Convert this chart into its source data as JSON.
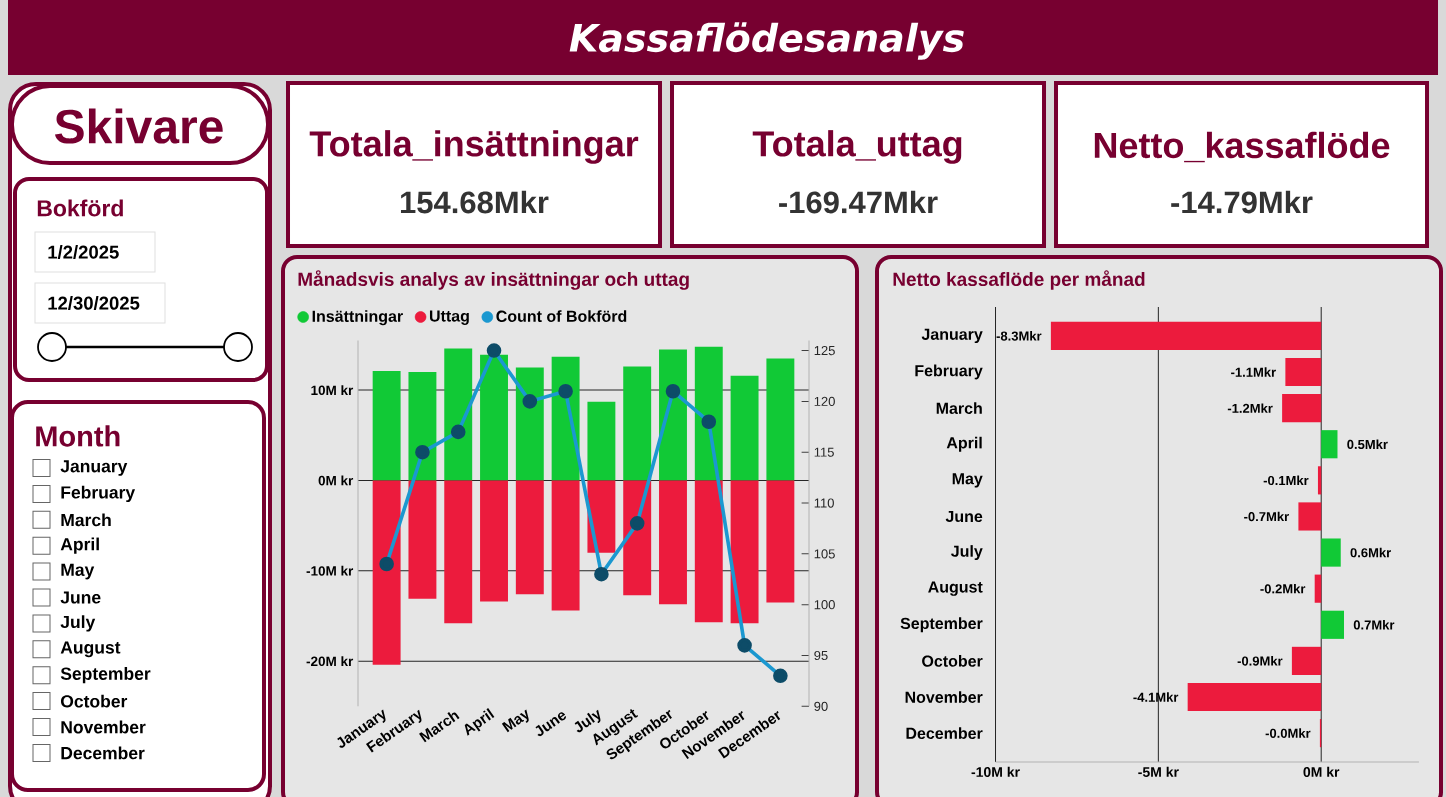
{
  "chart_data": [
    {
      "type": "other",
      "title": "Kassaflödesanalys"
    },
    {
      "type": "other",
      "title": "Skivare",
      "subtitle": "Bokförd",
      "annotations": [
        "1/2/2025",
        "12/30/2025"
      ]
    },
    {
      "type": "other",
      "title": "Month",
      "categories": [
        "January",
        "February",
        "March",
        "April",
        "May",
        "June",
        "July",
        "August",
        "September",
        "October",
        "November",
        "December"
      ]
    },
    {
      "type": "other",
      "annotations": [
        "Totala_insättningar",
        "154.68Mkr",
        "Totala_uttag",
        "-169.47Mkr",
        "Netto_kassaflöde",
        "-14.79Mkr"
      ]
    },
    {
      "type": "bar",
      "title": "Månadsvis analys av insättningar och uttag",
      "categories": [
        "January",
        "February",
        "March",
        "April",
        "May",
        "June",
        "July",
        "August",
        "September",
        "October",
        "November",
        "December"
      ],
      "stacked": true,
      "series": [
        {
          "name": "Insättningar",
          "color": "#11c936",
          "values": [
            12.1,
            12.0,
            14.6,
            13.9,
            12.5,
            13.7,
            8.7,
            12.6,
            14.5,
            14.8,
            11.6,
            13.5
          ]
        },
        {
          "name": "Uttag",
          "color": "#ec1b3d",
          "values": [
            -20.4,
            -13.1,
            -15.8,
            -13.4,
            -12.6,
            -14.4,
            -8.0,
            -12.7,
            -13.7,
            -15.7,
            -15.8,
            -13.5
          ]
        },
        {
          "name": "Count of Bokförd",
          "type": "line",
          "axis": "y2",
          "color": "#1b98d0",
          "values": [
            104,
            115,
            117,
            125,
            120,
            121,
            103,
            108,
            121,
            118,
            96,
            93
          ]
        }
      ],
      "marker": "circle",
      "ylim": [
        -25,
        15.5
      ],
      "yticks": [
        {
          "value": -20,
          "label": "-20M kr"
        },
        {
          "value": -10,
          "label": "-10M kr"
        },
        {
          "value": 0,
          "label": "0M kr"
        },
        {
          "value": 10,
          "label": "10M kr"
        }
      ],
      "y2lim": [
        90,
        126
      ],
      "y2ticks": [
        90,
        95,
        100,
        105,
        110,
        115,
        120,
        125
      ],
      "grid": "y",
      "legend": "top left"
    },
    {
      "type": "bar",
      "orientation": "horizontal",
      "title": "Netto kassaflöde per månad",
      "categories": [
        "January",
        "February",
        "March",
        "April",
        "May",
        "June",
        "July",
        "August",
        "September",
        "October",
        "November",
        "December"
      ],
      "values": [
        -8.3,
        -1.1,
        -1.2,
        0.5,
        -0.1,
        -0.7,
        0.6,
        -0.2,
        0.7,
        -0.9,
        -4.1,
        -0.04
      ],
      "colors": [
        "#ec1b3d",
        "#ec1b3d",
        "#ec1b3d",
        "#11c936",
        "#ec1b3d",
        "#ec1b3d",
        "#11c936",
        "#ec1b3d",
        "#11c936",
        "#ec1b3d",
        "#ec1b3d",
        "#ec1b3d"
      ],
      "value_labels": [
        "-8.3Mkr",
        "-1.1Mkr",
        "-1.2Mkr",
        "0.5Mkr",
        "-0.1Mkr",
        "-0.7Mkr",
        "0.6Mkr",
        "-0.2Mkr",
        "0.7Mkr",
        "-0.9Mkr",
        "-4.1Mkr",
        "-0.0Mkr"
      ],
      "xlim": [
        -10,
        3
      ],
      "xticks": [
        {
          "value": -10,
          "label": "-10M kr"
        },
        {
          "value": -5,
          "label": "-5M kr"
        },
        {
          "value": 0,
          "label": "0M kr"
        }
      ],
      "grid": "x"
    }
  ]
}
